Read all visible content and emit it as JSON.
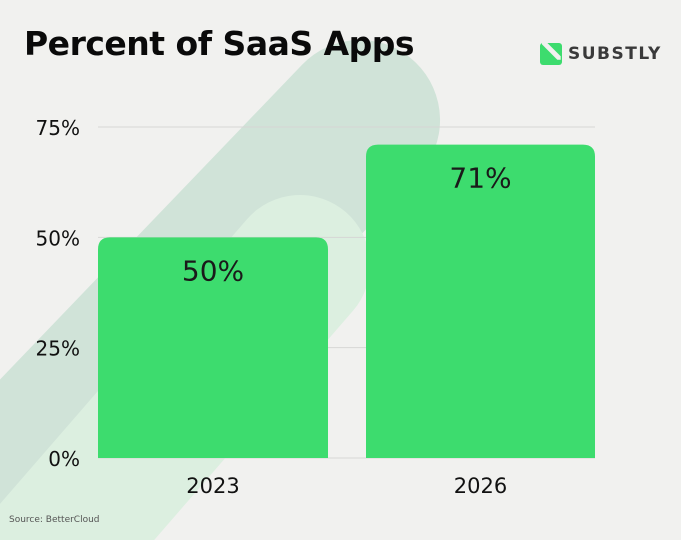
{
  "title": "Percent of SaaS Apps",
  "logo": {
    "text": "SUBSTLY",
    "icon": "substly-s-logo-icon",
    "color": "#3ddc6e"
  },
  "source": "Source: BetterCloud",
  "colors": {
    "bar": "#3ddc6e",
    "background": "#f1f1ef",
    "stripe_dark": "#d0e3d8",
    "stripe_light": "#dcefe0",
    "grid": "#d6d6d4"
  },
  "chart_data": {
    "type": "bar",
    "title": "Percent of SaaS Apps",
    "categories": [
      "2023",
      "2026"
    ],
    "values": [
      50,
      71
    ],
    "data_labels": [
      "50%",
      "71%"
    ],
    "ylim": [
      0,
      75
    ],
    "yticks": [
      0,
      25,
      50,
      75
    ],
    "ytick_labels": [
      "0%",
      "25%",
      "50%",
      "75%"
    ],
    "grid": true,
    "xlabel": "",
    "ylabel": ""
  }
}
